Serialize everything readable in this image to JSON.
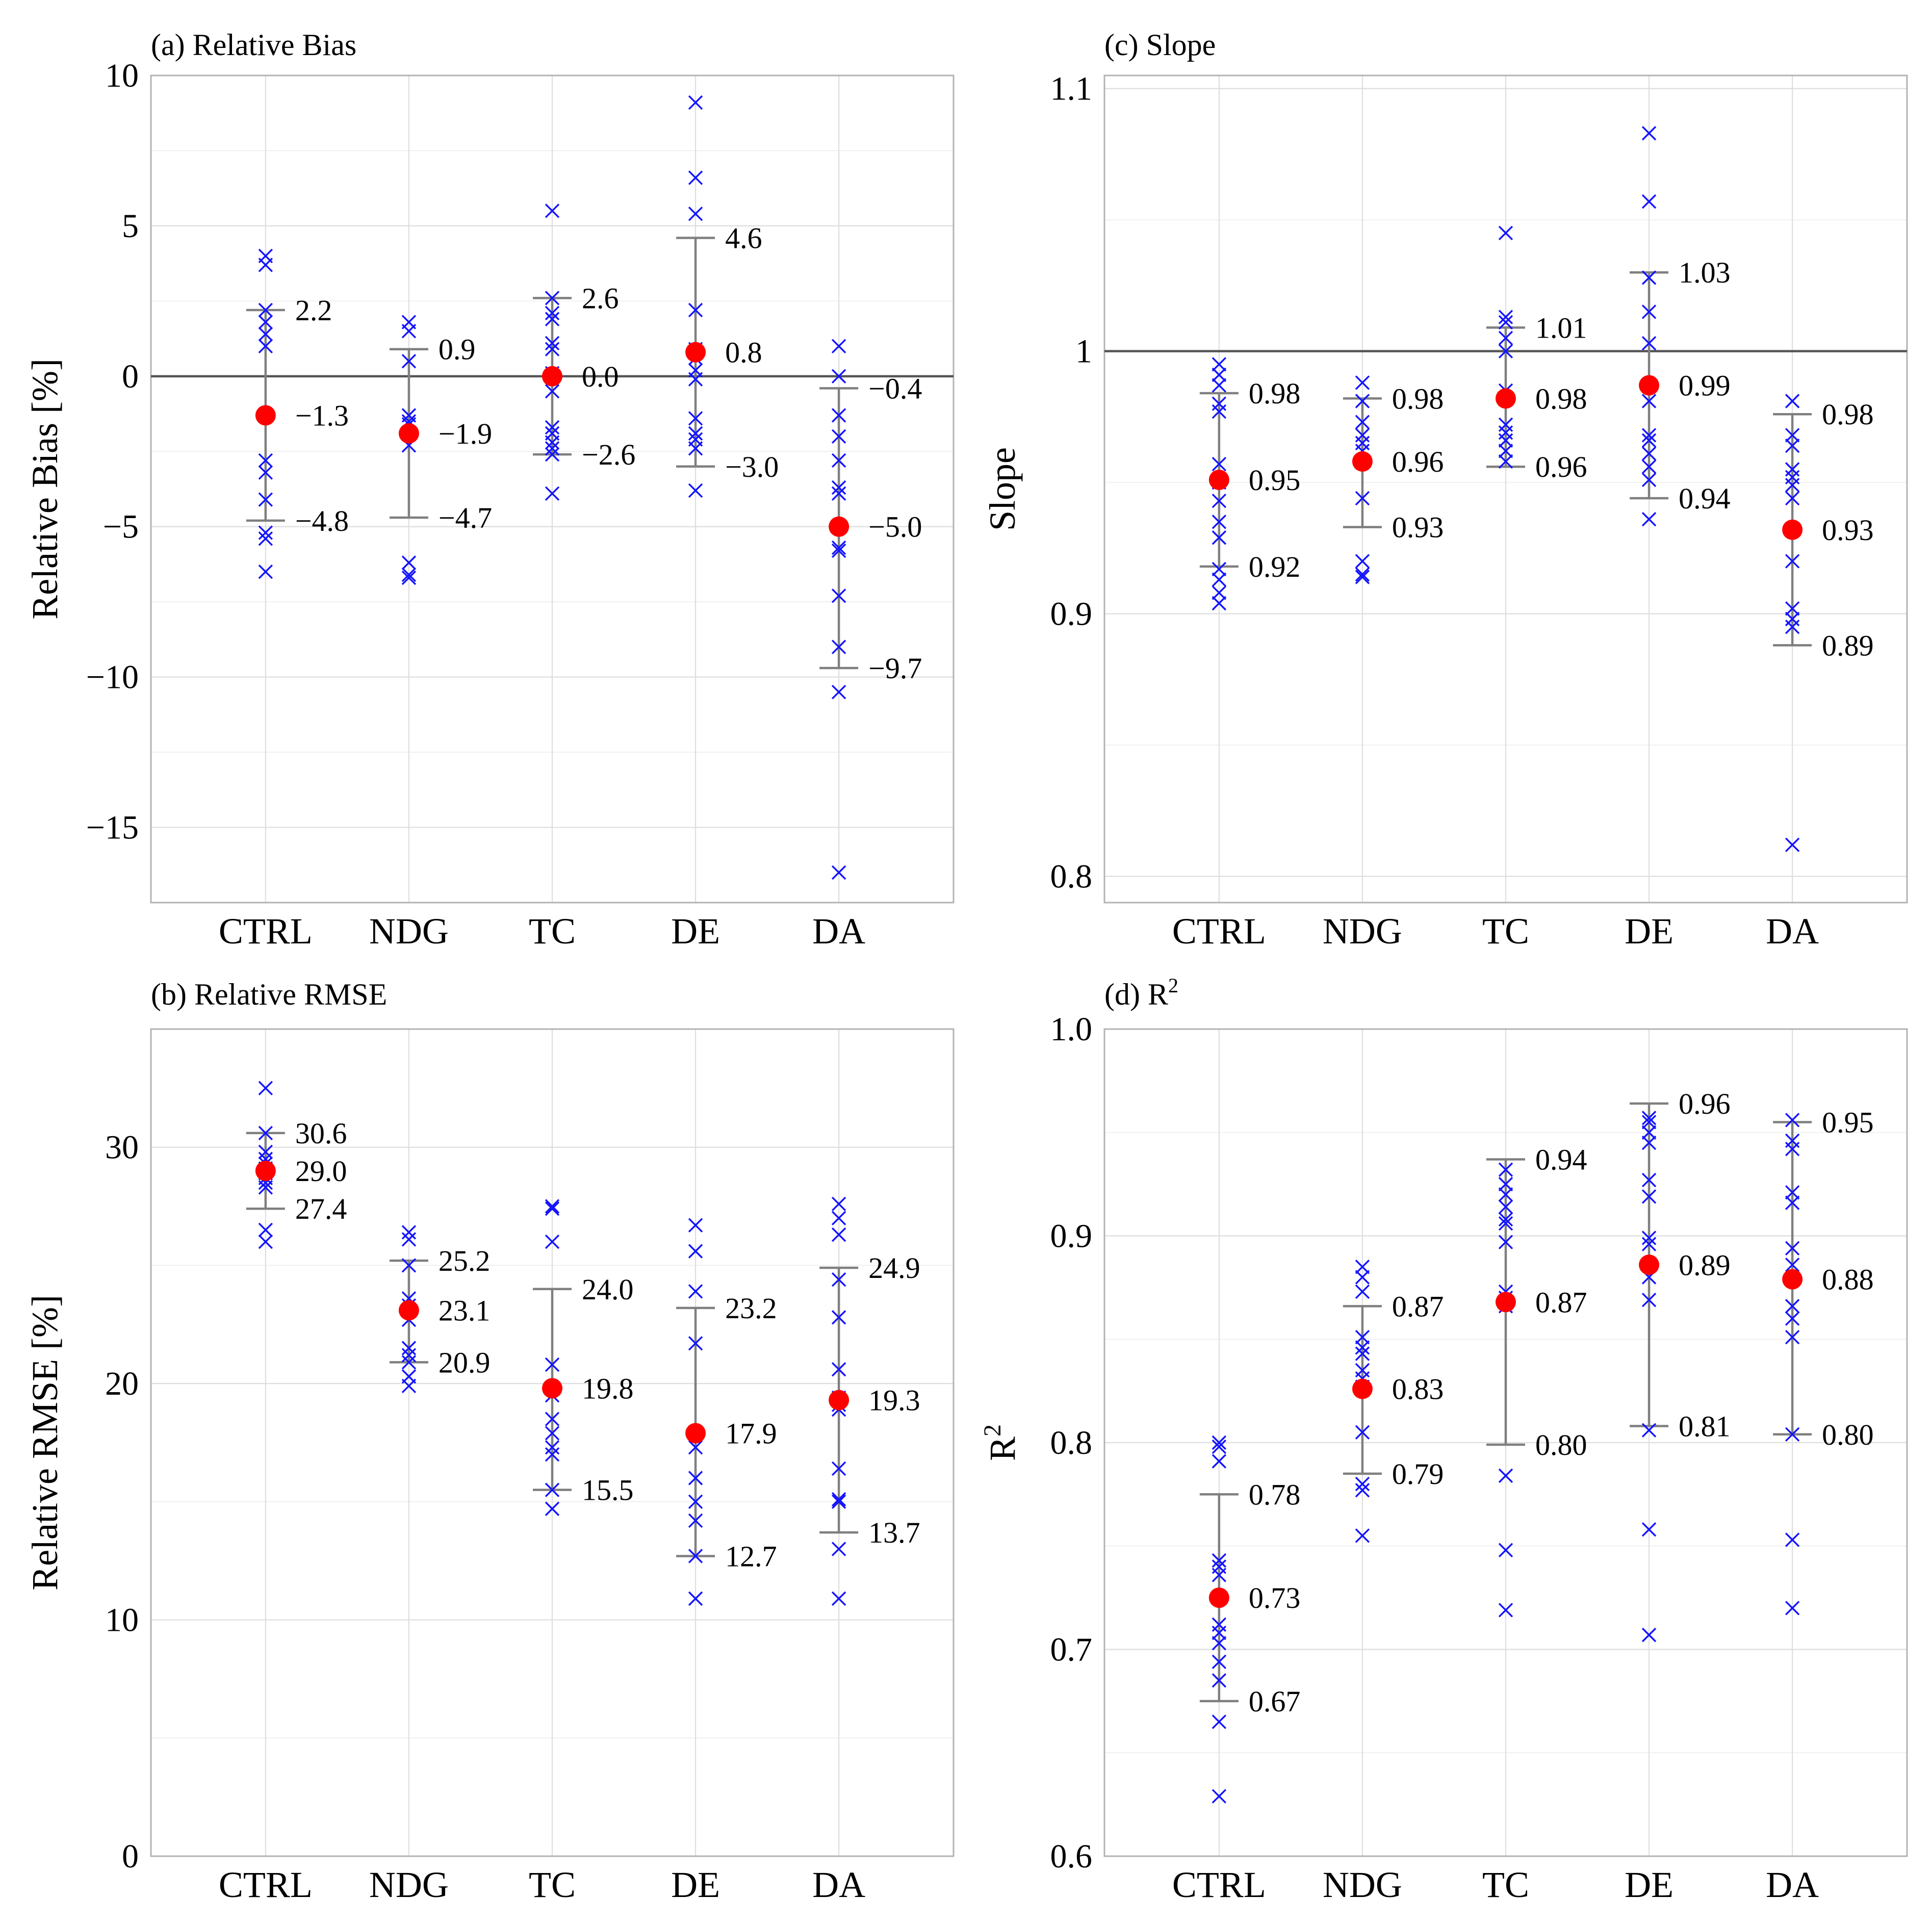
{
  "colors": {
    "points": "#1414ff",
    "mean": "#ff0000",
    "errorbar": "#7f7f7f",
    "refline": "#555555",
    "grid": "#dedede",
    "mean_label": "#ff0000",
    "bound_label": "#000000"
  },
  "chart_data": [
    {
      "id": "a",
      "type": "scatter",
      "title": "(a) Relative Bias",
      "ylabel": "Relative Bias [%]",
      "categories": [
        "CTRL",
        "NDG",
        "TC",
        "DE",
        "DA"
      ],
      "ylim": [
        -17.5,
        10
      ],
      "yticks": [
        10,
        5,
        0,
        -5,
        -10,
        -15
      ],
      "ytick_labels": [
        "10",
        "5",
        "0",
        "−5",
        "−10",
        "−15"
      ],
      "refline": 0,
      "groups": [
        {
          "points": [
            4.0,
            3.7,
            2.2,
            1.8,
            1.4,
            1.0,
            -1.3,
            -1.3,
            -2.8,
            -3.2,
            -4.1,
            -5.2,
            -5.4,
            -6.5
          ],
          "mean": -1.3,
          "upper": 2.2,
          "lower": -4.8,
          "mean_label": "−1.3",
          "upper_label": "2.2",
          "lower_label": "−4.8"
        },
        {
          "points": [
            1.8,
            1.5,
            0.5,
            -1.3,
            -1.5,
            -1.6,
            -1.9,
            -2.3,
            -6.2,
            -6.6,
            -6.7
          ],
          "mean": -1.9,
          "upper": 0.9,
          "lower": -4.7,
          "mean_label": "−1.9",
          "upper_label": "0.9",
          "lower_label": "−4.7"
        },
        {
          "points": [
            5.5,
            2.6,
            2.1,
            1.9,
            1.1,
            0.9,
            0.1,
            -0.5,
            -1.7,
            -1.9,
            -2.2,
            -2.4,
            -2.6,
            -3.9
          ],
          "mean": 0.0,
          "upper": 2.6,
          "lower": -2.6,
          "mean_label": "0.0",
          "upper_label": "2.6",
          "lower_label": "−2.6"
        },
        {
          "points": [
            9.1,
            6.6,
            5.4,
            2.2,
            0.9,
            0.6,
            0.2,
            -0.1,
            -1.4,
            -1.9,
            -2.1,
            -2.4,
            -3.8
          ],
          "mean": 0.8,
          "upper": 4.6,
          "lower": -3.0,
          "mean_label": "0.8",
          "upper_label": "4.6",
          "lower_label": "−3.0"
        },
        {
          "points": [
            1.0,
            0.0,
            -1.3,
            -2.0,
            -2.8,
            -3.7,
            -3.9,
            -5.7,
            -5.8,
            -7.3,
            -9.0,
            -10.5,
            -16.5
          ],
          "mean": -5.0,
          "upper": -0.4,
          "lower": -9.7,
          "mean_label": "−5.0",
          "upper_label": "−0.4",
          "lower_label": "−9.7"
        }
      ]
    },
    {
      "id": "b",
      "type": "scatter",
      "title": "(b) Relative RMSE",
      "ylabel": "Relative RMSE [%]",
      "categories": [
        "CTRL",
        "NDG",
        "TC",
        "DE",
        "DA"
      ],
      "ylim": [
        0,
        35
      ],
      "yticks": [
        30,
        20,
        10,
        0
      ],
      "ytick_labels": [
        "30",
        "20",
        "10",
        "0"
      ],
      "refline": null,
      "groups": [
        {
          "points": [
            32.5,
            30.6,
            29.8,
            29.5,
            29.3,
            29.1,
            28.9,
            28.7,
            28.5,
            28.3,
            26.5,
            26.0
          ],
          "mean": 29.0,
          "upper": 30.6,
          "lower": 27.4,
          "mean_label": "29.0",
          "upper_label": "30.6",
          "lower_label": "27.4"
        },
        {
          "points": [
            26.4,
            26.1,
            25.0,
            23.6,
            23.3,
            23.1,
            22.7,
            21.5,
            21.2,
            20.9,
            20.3,
            19.9
          ],
          "mean": 23.1,
          "upper": 25.2,
          "lower": 20.9,
          "mean_label": "23.1",
          "upper_label": "25.2",
          "lower_label": "20.9"
        },
        {
          "points": [
            27.5,
            27.4,
            26.0,
            20.8,
            19.8,
            19.5,
            18.5,
            17.9,
            17.3,
            17.0,
            15.5,
            14.7
          ],
          "mean": 19.8,
          "upper": 24.0,
          "lower": 15.5,
          "mean_label": "19.8",
          "upper_label": "24.0",
          "lower_label": "15.5"
        },
        {
          "points": [
            26.7,
            25.6,
            23.9,
            21.7,
            17.9,
            17.3,
            16.0,
            15.0,
            14.2,
            12.7,
            10.9
          ],
          "mean": 17.9,
          "upper": 23.2,
          "lower": 12.7,
          "mean_label": "17.9",
          "upper_label": "23.2",
          "lower_label": "12.7"
        },
        {
          "points": [
            27.6,
            27.0,
            26.3,
            24.4,
            22.8,
            20.6,
            19.4,
            19.1,
            18.9,
            16.4,
            15.1,
            15.0,
            13.0,
            10.9
          ],
          "mean": 19.3,
          "upper": 24.9,
          "lower": 13.7,
          "mean_label": "19.3",
          "upper_label": "24.9",
          "lower_label": "13.7"
        }
      ]
    },
    {
      "id": "c",
      "type": "scatter",
      "title": "(c) Slope",
      "ylabel": "Slope",
      "categories": [
        "CTRL",
        "NDG",
        "TC",
        "DE",
        "DA"
      ],
      "ylim": [
        0.79,
        1.105
      ],
      "yticks": [
        1.1,
        1.0,
        0.9,
        0.8
      ],
      "ytick_labels": [
        "1.1",
        "1",
        "0.9",
        "0.8"
      ],
      "refline": 1.0,
      "groups": [
        {
          "points": [
            0.995,
            0.991,
            0.987,
            0.98,
            0.977,
            0.957,
            0.95,
            0.943,
            0.935,
            0.929,
            0.917,
            0.913,
            0.908,
            0.904
          ],
          "mean": 0.951,
          "upper": 0.984,
          "lower": 0.918,
          "mean_label": "0.95",
          "upper_label": "0.98",
          "lower_label": "0.92"
        },
        {
          "points": [
            0.988,
            0.981,
            0.973,
            0.968,
            0.965,
            0.962,
            0.958,
            0.944,
            0.92,
            0.915,
            0.914
          ],
          "mean": 0.958,
          "upper": 0.982,
          "lower": 0.933,
          "mean_label": "0.96",
          "upper_label": "0.98",
          "lower_label": "0.93"
        },
        {
          "points": [
            1.045,
            1.013,
            1.011,
            1.005,
            1.0,
            0.985,
            0.972,
            0.969,
            0.966,
            0.962,
            0.958
          ],
          "mean": 0.982,
          "upper": 1.009,
          "lower": 0.956,
          "mean_label": "0.98",
          "upper_label": "1.01",
          "lower_label": "0.96"
        },
        {
          "points": [
            1.083,
            1.057,
            1.028,
            1.015,
            1.003,
            0.981,
            0.968,
            0.966,
            0.961,
            0.956,
            0.951,
            0.936
          ],
          "mean": 0.987,
          "upper": 1.03,
          "lower": 0.944,
          "mean_label": "0.99",
          "upper_label": "1.03",
          "lower_label": "0.94"
        },
        {
          "points": [
            0.981,
            0.968,
            0.964,
            0.955,
            0.952,
            0.949,
            0.944,
            0.92,
            0.902,
            0.898,
            0.895,
            0.812
          ],
          "mean": 0.932,
          "upper": 0.976,
          "lower": 0.888,
          "mean_label": "0.93",
          "upper_label": "0.98",
          "lower_label": "0.89"
        }
      ]
    },
    {
      "id": "d",
      "type": "scatter",
      "title": "(d) R",
      "title_superscript": "2",
      "ylabel": "R",
      "ylabel_superscript": "2",
      "categories": [
        "CTRL",
        "NDG",
        "TC",
        "DE",
        "DA"
      ],
      "ylim": [
        0.6,
        1.0
      ],
      "yticks": [
        1.0,
        0.9,
        0.8,
        0.7,
        0.6
      ],
      "ytick_labels": [
        "1.0",
        "0.9",
        "0.8",
        "0.7",
        "0.6"
      ],
      "refline": null,
      "groups": [
        {
          "points": [
            0.8,
            0.798,
            0.791,
            0.743,
            0.74,
            0.736,
            0.712,
            0.708,
            0.703,
            0.694,
            0.685,
            0.665,
            0.629
          ],
          "mean": 0.725,
          "upper": 0.775,
          "lower": 0.675,
          "mean_label": "0.73",
          "upper_label": "0.78",
          "lower_label": "0.67"
        },
        {
          "points": [
            0.885,
            0.88,
            0.873,
            0.851,
            0.846,
            0.843,
            0.835,
            0.831,
            0.827,
            0.805,
            0.78,
            0.777,
            0.755
          ],
          "mean": 0.826,
          "upper": 0.866,
          "lower": 0.785,
          "mean_label": "0.83",
          "upper_label": "0.87",
          "lower_label": "0.79"
        },
        {
          "points": [
            0.932,
            0.925,
            0.92,
            0.914,
            0.908,
            0.906,
            0.897,
            0.873,
            0.87,
            0.866,
            0.784,
            0.748,
            0.719
          ],
          "mean": 0.868,
          "upper": 0.937,
          "lower": 0.799,
          "mean_label": "0.87",
          "upper_label": "0.94",
          "lower_label": "0.80"
        },
        {
          "points": [
            0.957,
            0.955,
            0.95,
            0.945,
            0.927,
            0.919,
            0.899,
            0.896,
            0.88,
            0.869,
            0.806,
            0.758,
            0.707
          ],
          "mean": 0.886,
          "upper": 0.964,
          "lower": 0.808,
          "mean_label": "0.89",
          "upper_label": "0.96",
          "lower_label": "0.81"
        },
        {
          "points": [
            0.956,
            0.946,
            0.942,
            0.921,
            0.916,
            0.894,
            0.886,
            0.866,
            0.86,
            0.851,
            0.804,
            0.753,
            0.72
          ],
          "mean": 0.879,
          "upper": 0.955,
          "lower": 0.804,
          "mean_label": "0.88",
          "upper_label": "0.95",
          "lower_label": "0.80"
        }
      ]
    }
  ]
}
